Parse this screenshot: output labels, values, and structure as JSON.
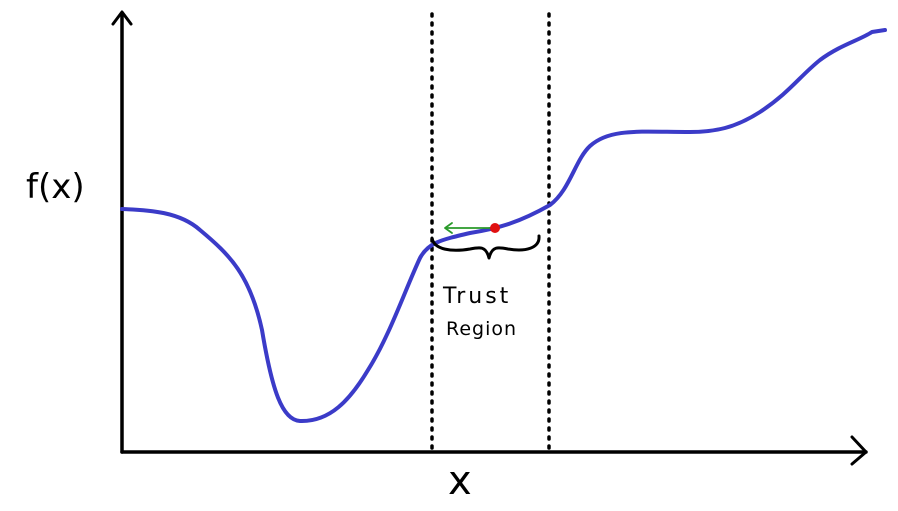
{
  "labels": {
    "y_axis": "f(x)",
    "x_axis": "x",
    "region_line_1": "Trust",
    "region_line_2": "Region"
  },
  "colors": {
    "curve": "#3b3bc8",
    "point": "#e01010",
    "arrow": "#2a9a2a",
    "axes": "#000000",
    "boundary": "#000000"
  }
}
